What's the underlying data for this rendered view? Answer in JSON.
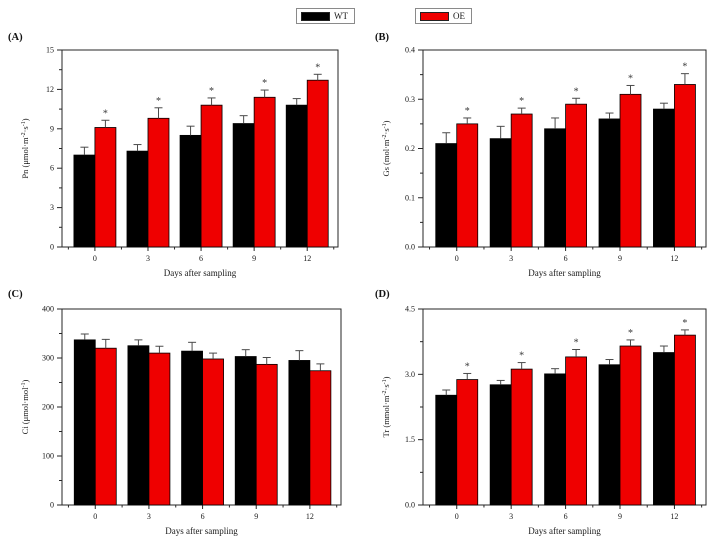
{
  "figure": {
    "background": "#ffffff",
    "legend": {
      "items": [
        {
          "label": "WT",
          "color": "#000000"
        },
        {
          "label": "OE",
          "color": "#ef0000"
        }
      ]
    },
    "colors": {
      "wt": "#000000",
      "oe": "#ef0000",
      "error_bar": "#4a4a4a",
      "frame": "#262626",
      "text": "#1a1a1a",
      "asterisk": "#3a3a3a"
    }
  },
  "chart_data": [
    {
      "id": "A",
      "type": "bar",
      "panel_label": "(A)",
      "categories": [
        0,
        3,
        6,
        9,
        12
      ],
      "xtick_labels": [
        "0",
        "3",
        "6",
        "9",
        "12"
      ],
      "xlabel": "Days after sampling",
      "ylabel": "Pn (μmol·m⁻²·s⁻¹)",
      "ylabel_parts": [
        {
          "t": "Pn (μmol·m"
        },
        {
          "t": "-2",
          "sup": true
        },
        {
          "t": "·s"
        },
        {
          "t": "-1",
          "sup": true
        },
        {
          "t": ")"
        }
      ],
      "ylim": [
        0,
        15
      ],
      "ytick_step": 3,
      "yminor_step": 1.5,
      "ytick_labels": [
        "0",
        "3",
        "6",
        "9",
        "12",
        "15"
      ],
      "grid": false,
      "legend_position": "top-center-outside",
      "sig_marker": "*",
      "series": [
        {
          "name": "WT",
          "values": [
            7.0,
            7.3,
            8.5,
            9.4,
            10.8
          ],
          "errors": [
            0.6,
            0.5,
            0.7,
            0.6,
            0.5
          ],
          "significant": [
            false,
            false,
            false,
            false,
            false
          ]
        },
        {
          "name": "OE",
          "values": [
            9.1,
            9.8,
            10.8,
            11.4,
            12.7
          ],
          "errors": [
            0.55,
            0.8,
            0.55,
            0.55,
            0.45
          ],
          "significant": [
            true,
            true,
            true,
            true,
            true
          ]
        }
      ]
    },
    {
      "id": "B",
      "type": "bar",
      "panel_label": "(B)",
      "categories": [
        0,
        3,
        6,
        9,
        12
      ],
      "xtick_labels": [
        "0",
        "3",
        "6",
        "9",
        "12"
      ],
      "xlabel": "Days after sampling",
      "ylabel": "Gs (mol·m⁻²·s⁻¹)",
      "ylabel_parts": [
        {
          "t": "Gs (mol·m"
        },
        {
          "t": "-2",
          "sup": true
        },
        {
          "t": "·s"
        },
        {
          "t": "-1",
          "sup": true
        },
        {
          "t": ")"
        }
      ],
      "ylim": [
        0,
        0.4
      ],
      "ytick_step": 0.1,
      "yminor_step": 0.05,
      "ytick_labels": [
        "0.0",
        "0.1",
        "0.2",
        "0.3",
        "0.4"
      ],
      "grid": false,
      "legend_position": "top-center-outside",
      "sig_marker": "*",
      "series": [
        {
          "name": "WT",
          "values": [
            0.21,
            0.22,
            0.24,
            0.26,
            0.28
          ],
          "errors": [
            0.022,
            0.025,
            0.022,
            0.012,
            0.012
          ],
          "significant": [
            false,
            false,
            false,
            false,
            false
          ]
        },
        {
          "name": "OE",
          "values": [
            0.25,
            0.27,
            0.29,
            0.31,
            0.33
          ],
          "errors": [
            0.012,
            0.012,
            0.012,
            0.018,
            0.022
          ],
          "significant": [
            true,
            true,
            true,
            true,
            true
          ]
        }
      ]
    },
    {
      "id": "C",
      "type": "bar",
      "panel_label": "(C)",
      "categories": [
        0,
        3,
        6,
        9,
        12
      ],
      "xtick_labels": [
        "0",
        "3",
        "6",
        "9",
        "12"
      ],
      "xlabel": "Days after sampling",
      "ylabel": "Ci (μmol·mol⁻¹)",
      "ylabel_parts": [
        {
          "t": "Ci (μmol·mol"
        },
        {
          "t": "-1",
          "sup": true
        },
        {
          "t": ")"
        }
      ],
      "ylim": [
        0,
        400
      ],
      "ytick_step": 100,
      "yminor_step": 50,
      "ytick_labels": [
        "0",
        "100",
        "200",
        "300",
        "400"
      ],
      "grid": false,
      "legend_position": "top-center-outside",
      "sig_marker": "*",
      "series": [
        {
          "name": "WT",
          "values": [
            337,
            325,
            314,
            303,
            295
          ],
          "errors": [
            12,
            12,
            18,
            14,
            20
          ],
          "significant": [
            false,
            false,
            false,
            false,
            false
          ]
        },
        {
          "name": "OE",
          "values": [
            320,
            310,
            298,
            287,
            274
          ],
          "errors": [
            18,
            14,
            12,
            14,
            14
          ],
          "significant": [
            false,
            false,
            false,
            false,
            false
          ]
        }
      ]
    },
    {
      "id": "D",
      "type": "bar",
      "panel_label": "(D)",
      "categories": [
        0,
        3,
        6,
        9,
        12
      ],
      "xtick_labels": [
        "0",
        "3",
        "6",
        "9",
        "12"
      ],
      "xlabel": "Days after sampling",
      "ylabel": "Tr (mmol·m⁻²·s⁻¹)",
      "ylabel_parts": [
        {
          "t": "Tr (mmol·m"
        },
        {
          "t": "-2",
          "sup": true
        },
        {
          "t": "·s"
        },
        {
          "t": "-1",
          "sup": true
        },
        {
          "t": ")"
        }
      ],
      "ylim": [
        0,
        4.5
      ],
      "ytick_step": 1.5,
      "yminor_step": 0.75,
      "ytick_labels": [
        "0.0",
        "1.5",
        "3.0",
        "4.5"
      ],
      "grid": false,
      "legend_position": "top-center-outside",
      "sig_marker": "*",
      "series": [
        {
          "name": "WT",
          "values": [
            2.52,
            2.76,
            3.01,
            3.22,
            3.5
          ],
          "errors": [
            0.12,
            0.1,
            0.12,
            0.12,
            0.15
          ],
          "significant": [
            false,
            false,
            false,
            false,
            false
          ]
        },
        {
          "name": "OE",
          "values": [
            2.88,
            3.12,
            3.4,
            3.65,
            3.9
          ],
          "errors": [
            0.14,
            0.15,
            0.17,
            0.14,
            0.12
          ],
          "significant": [
            true,
            true,
            true,
            true,
            true
          ]
        }
      ]
    }
  ]
}
